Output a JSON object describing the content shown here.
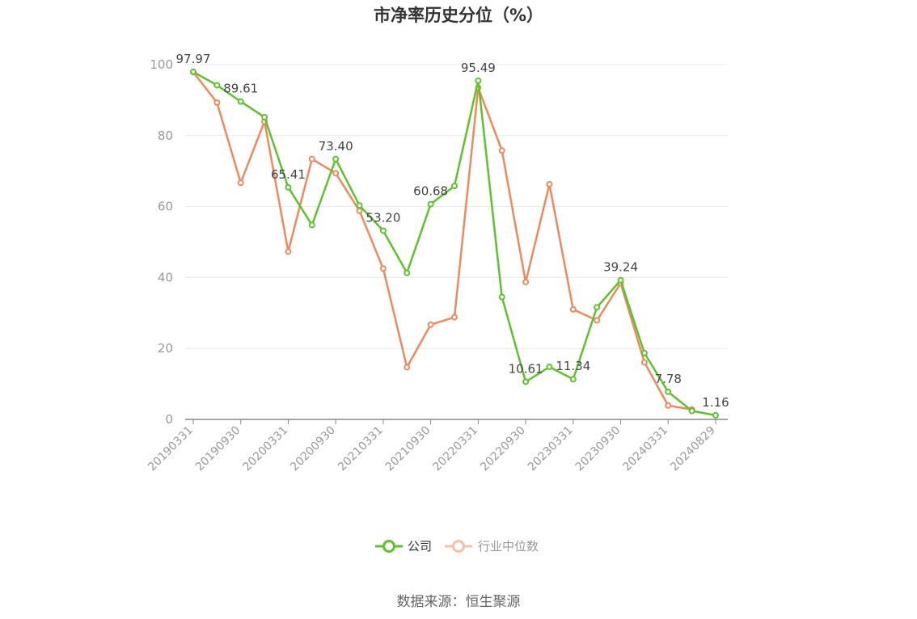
{
  "chart_data": {
    "type": "line",
    "title": "市净率历史分位（%）",
    "ylim": [
      0,
      100
    ],
    "yticks": [
      0,
      20,
      40,
      60,
      80,
      100
    ],
    "x_tick_labels": [
      "20190331",
      "20190930",
      "20200331",
      "20200930",
      "20210331",
      "20210930",
      "20220331",
      "20220930",
      "20230331",
      "20230930",
      "20240331",
      "20240829"
    ],
    "x": [
      "20190331",
      "20190630",
      "20190930",
      "20191231",
      "20200331",
      "20200630",
      "20200930",
      "20201231",
      "20210331",
      "20210630",
      "20210930",
      "20211231",
      "20220331",
      "20220630",
      "20220930",
      "20221231",
      "20230331",
      "20230630",
      "20230930",
      "20231231",
      "20240331",
      "20240630",
      "20240829"
    ],
    "series": [
      {
        "name": "公司",
        "color": "#5ac42a",
        "values": [
          97.97,
          94.2,
          89.61,
          85.2,
          65.41,
          54.8,
          73.4,
          60.3,
          53.2,
          41.3,
          60.68,
          65.8,
          95.49,
          34.5,
          10.61,
          14.8,
          11.34,
          31.6,
          39.24,
          18.7,
          7.78,
          2.4,
          1.16
        ],
        "labels": {
          "0": "97.97",
          "2": "89.61",
          "4": "65.41",
          "6": "73.40",
          "8": "53.20",
          "10": "60.68",
          "12": "95.49",
          "14": "10.61",
          "16": "11.34",
          "18": "39.24",
          "20": "7.78",
          "22": "1.16"
        }
      },
      {
        "name": "行业中位数",
        "color": "#f0895a",
        "values": [
          97.9,
          89.3,
          66.7,
          84.0,
          47.3,
          73.4,
          69.4,
          58.8,
          42.5,
          14.7,
          26.7,
          28.8,
          93.5,
          75.8,
          38.7,
          66.3,
          31.0,
          27.9,
          38.4,
          16.1,
          3.9,
          2.8,
          null
        ]
      }
    ],
    "legend_position": "bottom",
    "grid": true
  },
  "source": "数据来源：恒生聚源"
}
